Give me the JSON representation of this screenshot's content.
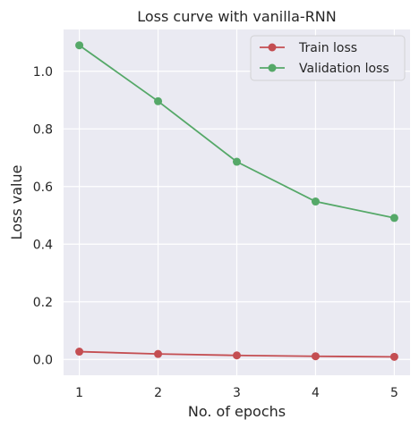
{
  "chart_data": {
    "type": "line",
    "title": "Loss curve with vanilla-RNN",
    "xlabel": "No. of epochs",
    "ylabel": "Loss value",
    "x": [
      1,
      2,
      3,
      4,
      5
    ],
    "xticks": [
      "1",
      "2",
      "3",
      "4",
      "5"
    ],
    "yticks": [
      "0.0",
      "0.2",
      "0.4",
      "0.6",
      "0.8",
      "1.0"
    ],
    "xlim": [
      0.8,
      5.2
    ],
    "ylim": [
      -0.055,
      1.145
    ],
    "grid": true,
    "legend_position": "top-right",
    "series": [
      {
        "name": "Train loss",
        "color": "#c44e52",
        "values": [
          0.027,
          0.019,
          0.014,
          0.011,
          0.009
        ]
      },
      {
        "name": "Validation loss",
        "color": "#55a868",
        "values": [
          1.09,
          0.896,
          0.686,
          0.548,
          0.491
        ]
      }
    ]
  }
}
